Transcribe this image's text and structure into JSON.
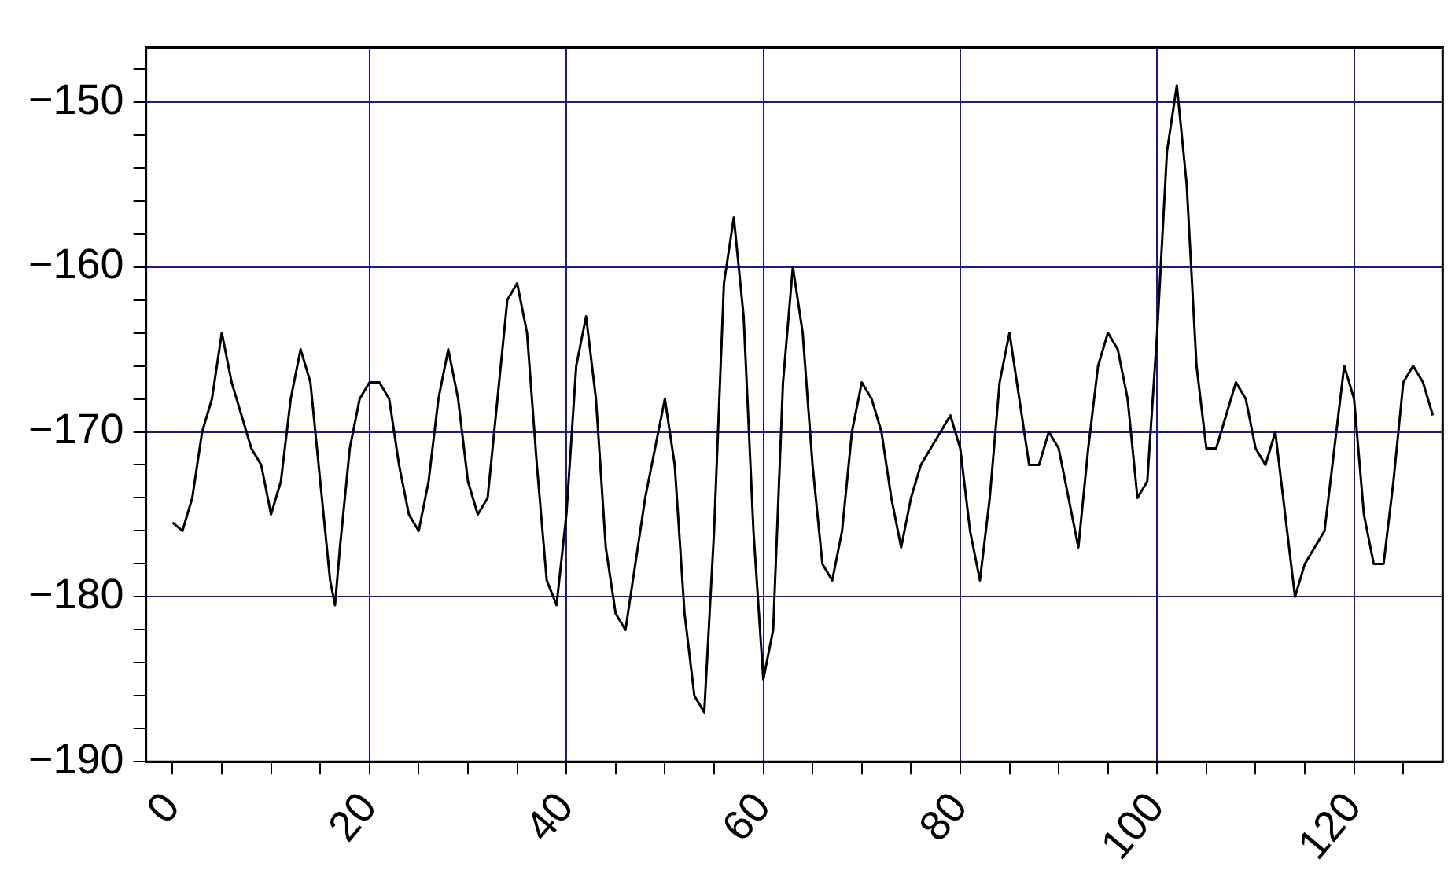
{
  "chart_data": {
    "type": "line",
    "x": [
      0,
      1,
      2,
      3,
      4,
      5,
      6,
      7,
      8,
      9,
      10,
      11,
      12,
      13,
      14,
      15,
      16,
      16.5,
      17,
      18,
      19,
      20,
      21,
      22,
      23,
      24,
      25,
      26,
      27,
      28,
      29,
      30,
      31,
      32,
      33,
      34,
      35,
      36,
      37,
      38,
      39,
      40,
      41,
      42,
      43,
      44,
      45,
      46,
      47,
      48,
      49,
      50,
      51,
      52,
      53,
      54,
      55,
      56,
      57,
      58,
      59,
      60,
      61,
      62,
      63,
      64,
      65,
      66,
      67,
      68,
      69,
      70,
      71,
      72,
      73,
      74,
      75,
      76,
      77,
      78,
      79,
      80,
      81,
      82,
      83,
      84,
      85,
      86,
      87,
      88,
      89,
      90,
      91,
      92,
      93,
      94,
      95,
      96,
      97,
      98,
      99,
      100,
      101,
      102,
      103,
      104,
      105,
      106,
      107,
      108,
      109,
      110,
      111,
      112,
      113,
      114,
      115,
      116,
      117,
      118,
      119,
      120,
      121,
      122,
      123,
      124,
      125,
      126,
      127,
      128
    ],
    "series": [
      {
        "color": "#000000",
        "values": [
          -175.5,
          -176,
          -174,
          -170,
          -168,
          -164,
          -167,
          -169,
          -171,
          -172,
          -175,
          -173,
          -168,
          -165,
          -167,
          -173,
          -179,
          -180.5,
          -177,
          -171,
          -168,
          -167,
          -167,
          -168,
          -172,
          -175,
          -176,
          -173,
          -168,
          -165,
          -168,
          -173,
          -175,
          -174,
          -168,
          -162,
          -161,
          -164,
          -172,
          -179,
          -180.5,
          -175,
          -166,
          -163,
          -168,
          -177,
          -181,
          -182,
          -178,
          -174,
          -171,
          -168,
          -172,
          -181,
          -186,
          -187,
          -176,
          -161,
          -157,
          -163,
          -176,
          -185,
          -182,
          -167,
          -160,
          -164,
          -172,
          -178,
          -179,
          -176,
          -170,
          -167,
          -168,
          -170,
          -174,
          -177,
          -174,
          -172,
          -171,
          -170,
          -169,
          -171,
          -176,
          -179,
          -174,
          -167,
          -164,
          -168,
          -172,
          -172,
          -170,
          -171,
          -174,
          -177,
          -171,
          -166,
          -164,
          -165,
          -168,
          -174,
          -173,
          -164,
          -153,
          -149,
          -155,
          -166,
          -171,
          -171,
          -169,
          -167,
          -168,
          -171,
          -172,
          -170,
          -175,
          -180,
          -178,
          -177,
          -176,
          -171,
          -166,
          -168,
          -175,
          -178,
          -178,
          -173,
          -167,
          -166,
          -167,
          -169
        ]
      }
    ],
    "xlim": [
      -2.7,
      129
    ],
    "xticks": [
      0,
      {
        "value": 5,
        "label": null
      },
      {
        "value": 10,
        "label": null
      },
      {
        "value": 15,
        "label": null
      },
      20,
      {
        "value": 25,
        "label": null
      },
      {
        "value": 30,
        "label": null
      },
      {
        "value": 35,
        "label": null
      },
      40,
      {
        "value": 45,
        "label": null
      },
      {
        "value": 50,
        "label": null
      },
      {
        "value": 55,
        "label": null
      },
      60,
      {
        "value": 65,
        "label": null
      },
      {
        "value": 70,
        "label": null
      },
      {
        "value": 75,
        "label": null
      },
      80,
      {
        "value": 85,
        "label": null
      },
      {
        "value": 90,
        "label": null
      },
      {
        "value": 95,
        "label": null
      },
      100,
      {
        "value": 105,
        "label": null
      },
      {
        "value": 110,
        "label": null
      },
      {
        "value": 115,
        "label": null
      },
      120,
      {
        "value": 125,
        "label": null
      }
    ],
    "ylim": [
      -190,
      -146.7
    ],
    "yticks": [
      {
        "value": -190,
        "label": "−190"
      },
      {
        "value": -188,
        "label": null
      },
      {
        "value": -186,
        "label": null
      },
      {
        "value": -184,
        "label": null
      },
      {
        "value": -182,
        "label": null
      },
      {
        "value": -180,
        "label": "−180"
      },
      {
        "value": -178,
        "label": null
      },
      {
        "value": -176,
        "label": null
      },
      {
        "value": -174,
        "label": null
      },
      {
        "value": -172,
        "label": null
      },
      {
        "value": -170,
        "label": "−170"
      },
      {
        "value": -168,
        "label": null
      },
      {
        "value": -166,
        "label": null
      },
      {
        "value": -164,
        "label": null
      },
      {
        "value": -162,
        "label": null
      },
      {
        "value": -160,
        "label": "−160"
      },
      {
        "value": -158,
        "label": null
      },
      {
        "value": -156,
        "label": null
      },
      {
        "value": -154,
        "label": null
      },
      {
        "value": -152,
        "label": null
      },
      {
        "value": -150,
        "label": "−150"
      },
      {
        "value": -148,
        "label": null
      }
    ],
    "grid": true,
    "marker": "none"
  }
}
